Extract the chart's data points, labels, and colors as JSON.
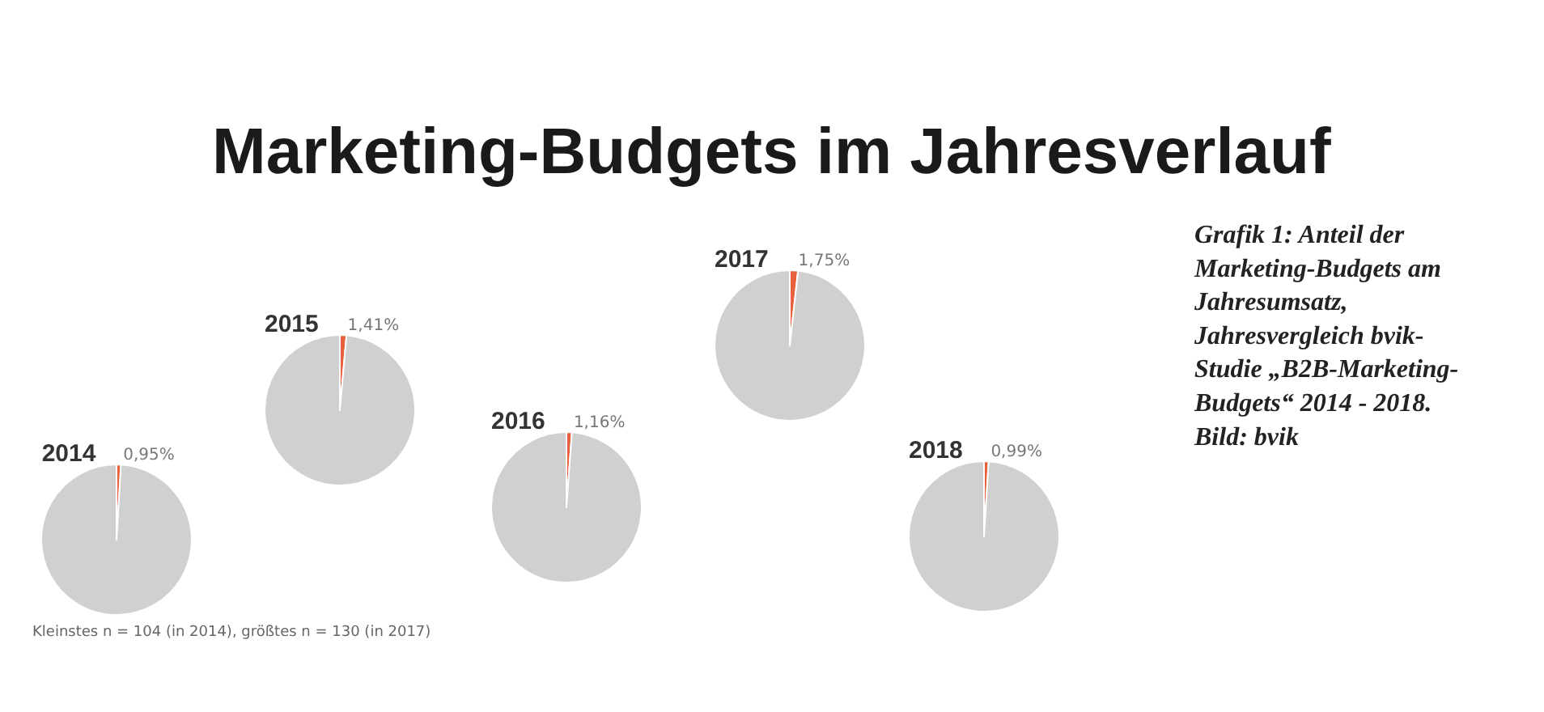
{
  "chart_data": [
    {
      "type": "pie",
      "title": "2014",
      "categories": [
        null,
        null
      ],
      "values": [
        0.95,
        99.05
      ],
      "colors": [
        "#e8603c",
        "#d0d0d0"
      ],
      "value_labels": [
        "0,95%",
        null
      ]
    },
    {
      "type": "pie",
      "title": "2015",
      "categories": [
        null,
        null
      ],
      "values": [
        1.41,
        98.59
      ],
      "colors": [
        "#e8603c",
        "#d0d0d0"
      ],
      "value_labels": [
        "1,41%",
        null
      ]
    },
    {
      "type": "pie",
      "title": "2016",
      "categories": [
        null,
        null
      ],
      "values": [
        1.16,
        98.84
      ],
      "colors": [
        "#e8603c",
        "#d0d0d0"
      ],
      "value_labels": [
        "1,16%",
        null
      ]
    },
    {
      "type": "pie",
      "title": "2017",
      "categories": [
        null,
        null
      ],
      "values": [
        1.75,
        98.25
      ],
      "colors": [
        "#e8603c",
        "#d0d0d0"
      ],
      "value_labels": [
        "1,75%",
        null
      ]
    },
    {
      "type": "pie",
      "title": "2018",
      "categories": [
        null,
        null
      ],
      "values": [
        0.99,
        99.01
      ],
      "colors": [
        "#e8603c",
        "#d0d0d0"
      ],
      "value_labels": [
        "0,99%",
        null
      ]
    },
    {
      "type": "other",
      "title": "Marketing-Budgets im Jahresverlauf",
      "annotations": [
        "Grafik 1: Anteil der Marketing-Budgets am Jahresumsatz, Jahresvergleich bvik-Studie „B2B-Marketing-Budgets“ 2014 - 2018. Bild: bvik",
        "Kleinstes n = 104 (in 2014), größtes n = 130 (in 2017)"
      ]
    }
  ]
}
